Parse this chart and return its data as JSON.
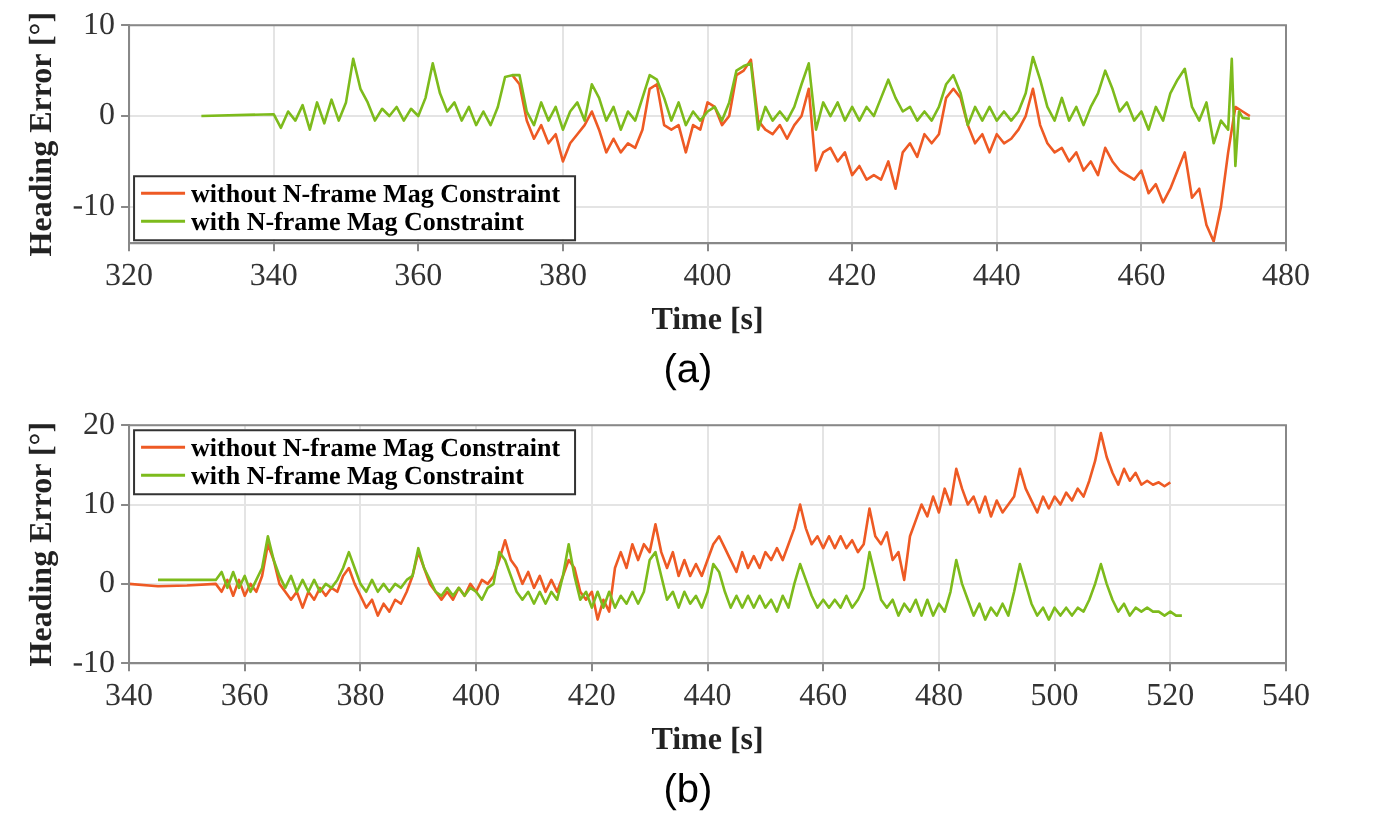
{
  "chart_data": [
    {
      "type": "line",
      "xlabel": "Time [s]",
      "ylabel": "Heading Error [°]",
      "xlim": [
        320,
        480
      ],
      "xticks": [
        320,
        340,
        360,
        380,
        400,
        420,
        440,
        460,
        480
      ],
      "ylim": [
        -14,
        10
      ],
      "yticks": [
        -10,
        0,
        10
      ],
      "grid": true,
      "legend": "bottom left",
      "marker": "none",
      "line_style": "solid",
      "annotations": [
        "(a)"
      ],
      "series": [
        {
          "name": "without N-frame Mag Constraint",
          "color": "#ee5a24",
          "x": [
            373,
            374,
            375,
            376,
            377,
            378,
            379,
            380,
            381,
            382,
            383,
            384,
            385,
            386,
            387,
            388,
            389,
            390,
            391,
            392,
            393,
            394,
            395,
            396,
            397,
            398,
            399,
            400,
            401,
            402,
            403,
            404,
            405,
            406,
            407,
            408,
            409,
            410,
            411,
            412,
            413,
            414,
            415,
            416,
            417,
            418,
            419,
            420,
            421,
            422,
            423,
            424,
            425,
            426,
            427,
            428,
            429,
            430,
            431,
            432,
            433,
            434,
            435,
            436,
            437,
            438,
            439,
            440,
            441,
            442,
            443,
            444,
            445,
            446,
            447,
            448,
            449,
            450,
            451,
            452,
            453,
            454,
            455,
            456,
            457,
            458,
            459,
            460,
            461,
            462,
            463,
            464,
            465,
            466,
            467,
            468,
            469,
            470,
            471,
            472,
            473,
            474,
            475
          ],
          "values": [
            4.5,
            3.5,
            -0.5,
            -2.5,
            -1,
            -3,
            -2,
            -5,
            -3,
            -2,
            -1,
            0.5,
            -1.5,
            -4,
            -2.5,
            -4,
            -3,
            -3.5,
            -1.5,
            3,
            3.5,
            -1,
            -1.5,
            -1,
            -4,
            -1,
            -1.5,
            1.5,
            1,
            -1,
            0,
            4.5,
            5,
            6.2,
            -0.5,
            -1.5,
            -2,
            -1,
            -2.5,
            -1,
            0,
            3,
            -6,
            -4,
            -3.5,
            -5,
            -4,
            -6.5,
            -5.5,
            -7,
            -6.5,
            -7,
            -5,
            -8,
            -4,
            -3,
            -4.5,
            -2,
            -3,
            -2,
            2,
            3,
            2,
            -1,
            -3,
            -2,
            -4,
            -2,
            -3,
            -2.5,
            -1.5,
            0,
            3,
            -1,
            -3,
            -4,
            -3.5,
            -5,
            -4,
            -6,
            -5,
            -6.5,
            -3.5,
            -5,
            -6,
            -6.5,
            -7,
            -6,
            -8.5,
            -7.5,
            -9.5,
            -8,
            -6,
            -4,
            -9,
            -8,
            -12,
            -13.8,
            -10,
            -4,
            1,
            0.5,
            0
          ]
        },
        {
          "name": "with N-frame Mag Constraint",
          "color": "#7dbb1c",
          "x": [
            330,
            340,
            341,
            342,
            343,
            344,
            345,
            346,
            347,
            348,
            349,
            350,
            351,
            352,
            353,
            354,
            355,
            356,
            357,
            358,
            359,
            360,
            361,
            362,
            363,
            364,
            365,
            366,
            367,
            368,
            369,
            370,
            371,
            372,
            373,
            374,
            375,
            376,
            377,
            378,
            379,
            380,
            381,
            382,
            383,
            384,
            385,
            386,
            387,
            388,
            389,
            390,
            391,
            392,
            393,
            394,
            395,
            396,
            397,
            398,
            399,
            400,
            401,
            402,
            403,
            404,
            405,
            406,
            407,
            408,
            409,
            410,
            411,
            412,
            413,
            414,
            415,
            416,
            417,
            418,
            419,
            420,
            421,
            422,
            423,
            424,
            425,
            426,
            427,
            428,
            429,
            430,
            431,
            432,
            433,
            434,
            435,
            436,
            437,
            438,
            439,
            440,
            441,
            442,
            443,
            444,
            445,
            446,
            447,
            448,
            449,
            450,
            451,
            452,
            453,
            454,
            455,
            456,
            457,
            458,
            459,
            460,
            461,
            462,
            463,
            464,
            465,
            466,
            467,
            468,
            469,
            470,
            471,
            472,
            472.5,
            473,
            473.5,
            474,
            475
          ],
          "values": [
            0,
            0.2,
            -1.3,
            0.5,
            -0.5,
            1.2,
            -1.5,
            1.5,
            -0.8,
            1.8,
            -0.5,
            1.5,
            6.3,
            3,
            1.5,
            -0.5,
            0.8,
            0,
            1,
            -0.5,
            0.8,
            0,
            2,
            5.8,
            2.5,
            0.5,
            1.5,
            -0.5,
            1,
            -1,
            0.5,
            -1,
            1,
            4.3,
            4.5,
            4.5,
            0.5,
            -1,
            1.5,
            -0.5,
            1,
            -1.5,
            0.5,
            1.5,
            -0.5,
            3.5,
            2,
            -0.5,
            1,
            -1.5,
            0.5,
            -0.5,
            2,
            4.5,
            4,
            2,
            -0.5,
            1.5,
            -1,
            0.5,
            -0.5,
            0.5,
            1,
            -0.5,
            1.5,
            5,
            5.5,
            5.8,
            -1.5,
            1,
            -0.5,
            0.5,
            -0.5,
            1,
            3.5,
            5.8,
            -1.5,
            1.5,
            0,
            1.5,
            -0.5,
            1,
            -0.5,
            1,
            0,
            2,
            4,
            2,
            0.5,
            1,
            -0.5,
            0.5,
            -0.5,
            1,
            3.5,
            4.5,
            2.5,
            -1,
            1,
            -0.5,
            1,
            -0.5,
            0.5,
            -0.5,
            0.5,
            2.5,
            6.5,
            4,
            1,
            -0.5,
            2,
            -0.5,
            1,
            -1,
            1,
            2.5,
            5,
            3,
            0.5,
            1.5,
            -0.5,
            0.5,
            -1.5,
            1,
            -0.5,
            2.5,
            4,
            5.2,
            1,
            -0.5,
            1.5,
            -3,
            -0.5,
            -1.5,
            6.3,
            -5.5,
            0.5,
            -0.2,
            -0.3
          ]
        }
      ]
    },
    {
      "type": "line",
      "xlabel": "Time [s]",
      "ylabel": "Heading Error [°]",
      "xlim": [
        340,
        540
      ],
      "xticks": [
        340,
        360,
        380,
        400,
        420,
        440,
        460,
        480,
        500,
        520,
        540
      ],
      "ylim": [
        -10,
        20
      ],
      "yticks": [
        -10,
        0,
        10,
        20
      ],
      "grid": true,
      "legend": "top left",
      "marker": "none",
      "line_style": "solid",
      "annotations": [
        "(b)"
      ],
      "series": [
        {
          "name": "without N-frame Mag Constraint",
          "color": "#ee5a24",
          "x": [
            340,
            345,
            350,
            355,
            356,
            357,
            358,
            359,
            360,
            361,
            362,
            363,
            364,
            365,
            366,
            367,
            368,
            369,
            370,
            371,
            372,
            373,
            374,
            375,
            376,
            377,
            378,
            379,
            380,
            381,
            382,
            383,
            384,
            385,
            386,
            387,
            388,
            389,
            390,
            391,
            392,
            393,
            394,
            395,
            396,
            397,
            398,
            399,
            400,
            401,
            402,
            403,
            404,
            405,
            406,
            407,
            408,
            409,
            410,
            411,
            412,
            413,
            414,
            415,
            416,
            417,
            418,
            419,
            420,
            421,
            422,
            423,
            424,
            425,
            426,
            427,
            428,
            429,
            430,
            431,
            432,
            433,
            434,
            435,
            436,
            437,
            438,
            439,
            440,
            441,
            442,
            443,
            444,
            445,
            446,
            447,
            448,
            449,
            450,
            451,
            452,
            453,
            454,
            455,
            456,
            457,
            458,
            459,
            460,
            461,
            462,
            463,
            464,
            465,
            466,
            467,
            468,
            469,
            470,
            471,
            472,
            473,
            474,
            475,
            476,
            477,
            478,
            479,
            480,
            481,
            482,
            483,
            484,
            485,
            486,
            487,
            488,
            489,
            490,
            491,
            492,
            493,
            494,
            495,
            496,
            497,
            498,
            499,
            500,
            501,
            502,
            503,
            504,
            505,
            506,
            507,
            508,
            509,
            510,
            511,
            512,
            513,
            514,
            515,
            516,
            517,
            518,
            519,
            520
          ],
          "values": [
            0,
            -0.3,
            -0.2,
            0,
            -1,
            0.5,
            -1.5,
            0.5,
            -1.5,
            0,
            -1,
            1,
            5,
            3,
            0,
            -1,
            -2,
            -1,
            -3,
            -1,
            -2,
            -0.5,
            -1.5,
            -0.5,
            -1,
            1,
            2,
            0,
            -1.5,
            -3,
            -2,
            -4,
            -2.5,
            -3.5,
            -2,
            -2.5,
            -1,
            1,
            4,
            2,
            0,
            -1,
            -2,
            -1,
            -2,
            -0.5,
            -1.5,
            0,
            -1,
            0.5,
            0,
            1,
            3,
            5.5,
            3,
            2,
            0,
            1.5,
            -0.5,
            1,
            -1,
            0.5,
            -1,
            1,
            3,
            2,
            -1,
            -2,
            -1,
            -4.5,
            -2,
            -3.5,
            2,
            4,
            2,
            5,
            3,
            5,
            4,
            7.5,
            4,
            2,
            4,
            1,
            3,
            1,
            2.5,
            1,
            3,
            5,
            6,
            4.5,
            3,
            1.5,
            4,
            2,
            3.5,
            2,
            4,
            3,
            4.5,
            3,
            5,
            7,
            10,
            7,
            5,
            6,
            4.5,
            6,
            4.5,
            6,
            4.5,
            5.5,
            4,
            5,
            9.5,
            6,
            5,
            6.5,
            3,
            4,
            0.5,
            6,
            8,
            10,
            8.5,
            11,
            9,
            12,
            10,
            14.5,
            12,
            10,
            11,
            9,
            11,
            8.5,
            10.5,
            9,
            10,
            11,
            14.5,
            12,
            10.5,
            9,
            11,
            9.5,
            11,
            10,
            11.5,
            10.5,
            12,
            11,
            13,
            15.5,
            19,
            16,
            14,
            12.5,
            14.5,
            13,
            14,
            12.5,
            13,
            12.5,
            12.8,
            12.3,
            12.8
          ]
        },
        {
          "name": "with N-frame Mag Constraint",
          "color": "#7dbb1c",
          "x": [
            345,
            350,
            355,
            356,
            357,
            358,
            359,
            360,
            361,
            362,
            363,
            364,
            365,
            366,
            367,
            368,
            369,
            370,
            371,
            372,
            373,
            374,
            375,
            376,
            377,
            378,
            379,
            380,
            381,
            382,
            383,
            384,
            385,
            386,
            387,
            388,
            389,
            390,
            391,
            392,
            393,
            394,
            395,
            396,
            397,
            398,
            399,
            400,
            401,
            402,
            403,
            404,
            405,
            406,
            407,
            408,
            409,
            410,
            411,
            412,
            413,
            414,
            415,
            416,
            417,
            418,
            419,
            420,
            421,
            422,
            423,
            424,
            425,
            426,
            427,
            428,
            429,
            430,
            431,
            432,
            433,
            434,
            435,
            436,
            437,
            438,
            439,
            440,
            441,
            442,
            443,
            444,
            445,
            446,
            447,
            448,
            449,
            450,
            451,
            452,
            453,
            454,
            455,
            456,
            457,
            458,
            459,
            460,
            461,
            462,
            463,
            464,
            465,
            466,
            467,
            468,
            469,
            470,
            471,
            472,
            473,
            474,
            475,
            476,
            477,
            478,
            479,
            480,
            481,
            482,
            483,
            484,
            485,
            486,
            487,
            488,
            489,
            490,
            491,
            492,
            493,
            494,
            495,
            496,
            497,
            498,
            499,
            500,
            501,
            502,
            503,
            504,
            505,
            506,
            507,
            508,
            509,
            510,
            511,
            512,
            513,
            514,
            515,
            516,
            517,
            518,
            519,
            520,
            521,
            522
          ],
          "values": [
            0.5,
            0.5,
            0.5,
            1.5,
            -0.5,
            1.5,
            -0.5,
            1,
            -1,
            0.5,
            2,
            6,
            3,
            1,
            -0.5,
            1,
            -1,
            0.5,
            -1,
            0.5,
            -1,
            0,
            -0.5,
            0.5,
            2,
            4,
            2,
            0,
            -1,
            0.5,
            -1,
            0,
            -1,
            0,
            -0.5,
            0.5,
            1,
            4.5,
            2,
            0.5,
            -1,
            -1.5,
            -0.5,
            -1.5,
            -0.5,
            -1.5,
            -0.5,
            -1,
            -2,
            -0.5,
            0,
            4,
            3,
            1,
            -1,
            -2,
            -1,
            -2.5,
            -1,
            -2.5,
            -1,
            -2,
            1,
            5,
            1,
            -2,
            -1,
            -3,
            -1,
            -3,
            -1,
            -3,
            -1.5,
            -2.5,
            -1,
            -2.5,
            -1,
            3,
            4,
            1,
            -2,
            -1,
            -3,
            -1,
            -2.5,
            -1.5,
            -3,
            -1,
            2.5,
            1.5,
            -1,
            -3,
            -1.5,
            -3,
            -1.5,
            -3,
            -1.5,
            -3,
            -2,
            -3.5,
            -1.5,
            -3,
            0,
            2.5,
            0.5,
            -1.5,
            -3,
            -2,
            -3,
            -2,
            -3,
            -1.5,
            -3,
            -2,
            -0.5,
            4,
            1,
            -2,
            -3,
            -2,
            -4,
            -2.5,
            -3.5,
            -2,
            -4,
            -2,
            -4,
            -2.5,
            -3.5,
            -1,
            3,
            0,
            -2,
            -4,
            -2.5,
            -4.5,
            -3,
            -4,
            -2.5,
            -4,
            -1,
            2.5,
            0,
            -2.5,
            -4,
            -3,
            -4.5,
            -3,
            -4,
            -3,
            -4,
            -3,
            -3.5,
            -2,
            0,
            2.5,
            0,
            -2,
            -3.5,
            -2.5,
            -4,
            -3,
            -3.5,
            -3,
            -3.5,
            -3.5,
            -4,
            -3.5,
            -4,
            -4
          ]
        }
      ]
    }
  ]
}
